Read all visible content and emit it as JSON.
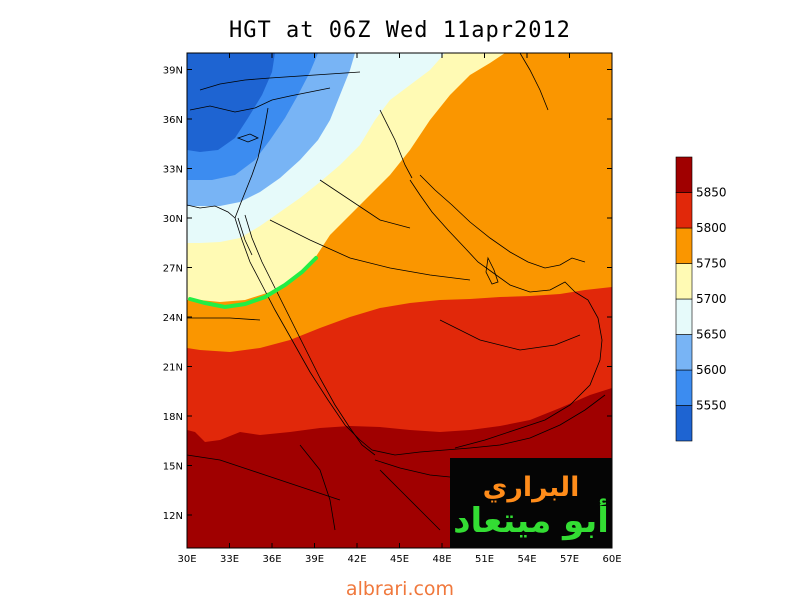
{
  "title": "HGT at 06Z Wed 11apr2012",
  "footer": "albrari.com",
  "watermark": {
    "line1": "البراري",
    "line2": "أبو ميتعاد"
  },
  "chart_data": {
    "type": "contour-map",
    "variable": "HGT",
    "valid_time": "06Z Wed 11apr2012",
    "lon_range": [
      30,
      60
    ],
    "lat_range": [
      10,
      40
    ],
    "x_ticks": [
      "30E",
      "33E",
      "36E",
      "39E",
      "42E",
      "45E",
      "48E",
      "51E",
      "54E",
      "57E",
      "60E"
    ],
    "y_ticks": [
      "12N",
      "15N",
      "18N",
      "21N",
      "24N",
      "27N",
      "30N",
      "33N",
      "36N",
      "39N"
    ],
    "levels": [
      5550,
      5600,
      5650,
      5700,
      5750,
      5800,
      5850
    ],
    "colors": {
      "below_5550": "#1e64d2",
      "5550_5600": "#3c8cf0",
      "5600_5650": "#78b4f5",
      "5650_5700": "#e6fafa",
      "5700_5750": "#fffab4",
      "5750_5800": "#fa9600",
      "5800_5850": "#e1280a",
      "above_5850": "#a00000",
      "highlight_line": "#22ee44"
    }
  }
}
